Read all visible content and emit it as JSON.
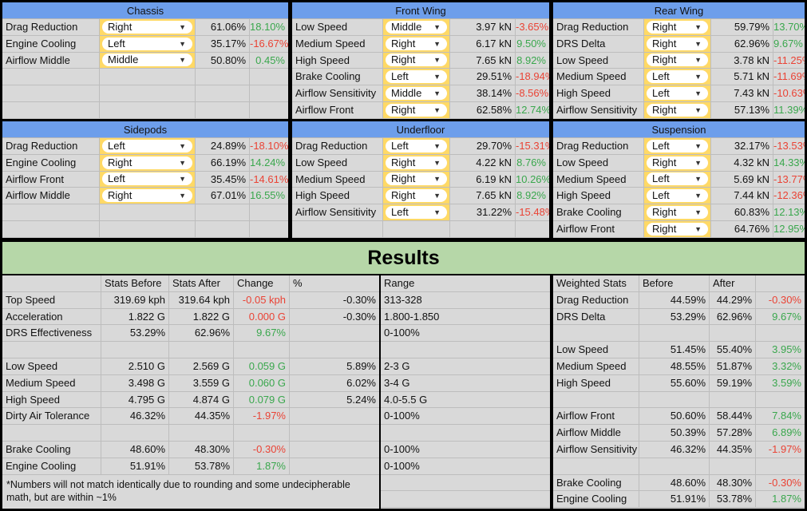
{
  "chassis": {
    "title": "Chassis",
    "rows": [
      {
        "name": "Drag Reduction",
        "dd": "Right",
        "val": "61.06%",
        "chg": "18.10%",
        "sign": "pos"
      },
      {
        "name": "Engine Cooling",
        "dd": "Left",
        "val": "35.17%",
        "chg": "-16.67%",
        "sign": "neg"
      },
      {
        "name": "Airflow Middle",
        "dd": "Middle",
        "val": "50.80%",
        "chg": "0.45%",
        "sign": "pos"
      },
      {
        "name": "",
        "dd": "",
        "val": "",
        "chg": "",
        "sign": ""
      },
      {
        "name": "",
        "dd": "",
        "val": "",
        "chg": "",
        "sign": ""
      },
      {
        "name": "",
        "dd": "",
        "val": "",
        "chg": "",
        "sign": ""
      }
    ]
  },
  "front_wing": {
    "title": "Front Wing",
    "rows": [
      {
        "name": "Low Speed",
        "dd": "Middle",
        "val": "3.97 kN",
        "chg": "-3.65%",
        "sign": "neg"
      },
      {
        "name": "Medium Speed",
        "dd": "Right",
        "val": "6.17 kN",
        "chg": "9.50%",
        "sign": "pos"
      },
      {
        "name": "High Speed",
        "dd": "Right",
        "val": "7.65 kN",
        "chg": "8.92%",
        "sign": "pos"
      },
      {
        "name": "Brake Cooling",
        "dd": "Left",
        "val": "29.51%",
        "chg": "-18.94%",
        "sign": "neg"
      },
      {
        "name": "Airflow Sensitivity",
        "dd": "Middle",
        "val": "38.14%",
        "chg": "-8.56%",
        "sign": "neg"
      },
      {
        "name": "Airflow Front",
        "dd": "Right",
        "val": "62.58%",
        "chg": "12.74%",
        "sign": "pos"
      }
    ]
  },
  "rear_wing": {
    "title": "Rear Wing",
    "rows": [
      {
        "name": "Drag Reduction",
        "dd": "Right",
        "val": "59.79%",
        "chg": "13.70%",
        "sign": "pos"
      },
      {
        "name": "DRS Delta",
        "dd": "Right",
        "val": "62.96%",
        "chg": "9.67%",
        "sign": "pos"
      },
      {
        "name": "Low Speed",
        "dd": "Right",
        "val": "3.78 kN",
        "chg": "-11.25%",
        "sign": "neg"
      },
      {
        "name": "Medium Speed",
        "dd": "Left",
        "val": "5.71 kN",
        "chg": "-11.69%",
        "sign": "neg"
      },
      {
        "name": "High Speed",
        "dd": "Left",
        "val": "7.43 kN",
        "chg": "-10.63%",
        "sign": "neg"
      },
      {
        "name": "Airflow Sensitivity",
        "dd": "Right",
        "val": "57.13%",
        "chg": "11.39%",
        "sign": "pos"
      }
    ]
  },
  "sidepods": {
    "title": "Sidepods",
    "rows": [
      {
        "name": "Drag Reduction",
        "dd": "Left",
        "val": "24.89%",
        "chg": "-18.10%",
        "sign": "neg"
      },
      {
        "name": "Engine Cooling",
        "dd": "Right",
        "val": "66.19%",
        "chg": "14.24%",
        "sign": "pos"
      },
      {
        "name": "Airflow Front",
        "dd": "Left",
        "val": "35.45%",
        "chg": "-14.61%",
        "sign": "neg"
      },
      {
        "name": "Airflow Middle",
        "dd": "Right",
        "val": "67.01%",
        "chg": "16.55%",
        "sign": "pos"
      },
      {
        "name": "",
        "dd": "",
        "val": "",
        "chg": "",
        "sign": ""
      },
      {
        "name": "",
        "dd": "",
        "val": "",
        "chg": "",
        "sign": ""
      }
    ]
  },
  "underfloor": {
    "title": "Underfloor",
    "rows": [
      {
        "name": "Drag Reduction",
        "dd": "Left",
        "val": "29.70%",
        "chg": "-15.31%",
        "sign": "neg"
      },
      {
        "name": "Low Speed",
        "dd": "Right",
        "val": "4.22 kN",
        "chg": "8.76%",
        "sign": "pos"
      },
      {
        "name": "Medium Speed",
        "dd": "Right",
        "val": "6.19 kN",
        "chg": "10.26%",
        "sign": "pos"
      },
      {
        "name": "High Speed",
        "dd": "Right",
        "val": "7.65 kN",
        "chg": "8.92%",
        "sign": "pos"
      },
      {
        "name": "Airflow Sensitivity",
        "dd": "Left",
        "val": "31.22%",
        "chg": "-15.48%",
        "sign": "neg"
      },
      {
        "name": "",
        "dd": "",
        "val": "",
        "chg": "",
        "sign": ""
      }
    ]
  },
  "suspension": {
    "title": "Suspension",
    "rows": [
      {
        "name": "Drag Reduction",
        "dd": "Left",
        "val": "32.17%",
        "chg": "-13.53%",
        "sign": "neg"
      },
      {
        "name": "Low Speed",
        "dd": "Right",
        "val": "4.32 kN",
        "chg": "14.33%",
        "sign": "pos"
      },
      {
        "name": "Medium Speed",
        "dd": "Left",
        "val": "5.69 kN",
        "chg": "-13.77%",
        "sign": "neg"
      },
      {
        "name": "High Speed",
        "dd": "Left",
        "val": "7.44 kN",
        "chg": "-12.36%",
        "sign": "neg"
      },
      {
        "name": "Brake Cooling",
        "dd": "Right",
        "val": "60.83%",
        "chg": "12.13%",
        "sign": "pos"
      },
      {
        "name": "Airflow Front",
        "dd": "Right",
        "val": "64.76%",
        "chg": "12.95%",
        "sign": "pos"
      }
    ]
  },
  "results_title": "Results",
  "stats": {
    "headers": [
      "",
      "Stats Before",
      "Stats After",
      "Change",
      "%"
    ],
    "rows": [
      {
        "name": "Top Speed",
        "before": "319.69 kph",
        "after": "319.64 kph",
        "chg": "-0.05 kph",
        "sign": "neg",
        "pct": "-0.30%"
      },
      {
        "name": "Acceleration",
        "before": "1.822 G",
        "after": "1.822 G",
        "chg": "0.000 G",
        "sign": "neg",
        "pct": "-0.30%"
      },
      {
        "name": "DRS Effectiveness",
        "before": "53.29%",
        "after": "62.96%",
        "chg": "9.67%",
        "sign": "pos",
        "pct": ""
      },
      {
        "name": "",
        "before": "",
        "after": "",
        "chg": "",
        "sign": "",
        "pct": ""
      },
      {
        "name": "Low Speed",
        "before": "2.510 G",
        "after": "2.569 G",
        "chg": "0.059 G",
        "sign": "pos",
        "pct": "5.89%"
      },
      {
        "name": "Medium Speed",
        "before": "3.498 G",
        "after": "3.559 G",
        "chg": "0.060 G",
        "sign": "pos",
        "pct": "6.02%"
      },
      {
        "name": "High Speed",
        "before": "4.795 G",
        "after": "4.874 G",
        "chg": "0.079 G",
        "sign": "pos",
        "pct": "5.24%"
      },
      {
        "name": "Dirty Air Tolerance",
        "before": "46.32%",
        "after": "44.35%",
        "chg": "-1.97%",
        "sign": "neg",
        "pct": ""
      },
      {
        "name": "",
        "before": "",
        "after": "",
        "chg": "",
        "sign": "",
        "pct": ""
      },
      {
        "name": "Brake Cooling",
        "before": "48.60%",
        "after": "48.30%",
        "chg": "-0.30%",
        "sign": "neg",
        "pct": ""
      },
      {
        "name": "Engine Cooling",
        "before": "51.91%",
        "after": "53.78%",
        "chg": "1.87%",
        "sign": "pos",
        "pct": ""
      }
    ],
    "note": "*Numbers will not match identically due to rounding and some undecipherable math, but are within ~1%"
  },
  "range": {
    "header": "Range",
    "rows": [
      "313-328",
      "1.800-1.850",
      "0-100%",
      "",
      "2-3 G",
      "3-4 G",
      "4.0-5.5 G",
      "0-100%",
      "",
      "0-100%",
      "0-100%",
      "",
      ""
    ]
  },
  "weighted": {
    "headers": [
      "Weighted Stats",
      "Before",
      "After",
      ""
    ],
    "rows": [
      {
        "name": "Drag Reduction",
        "before": "44.59%",
        "after": "44.29%",
        "chg": "-0.30%",
        "sign": "neg"
      },
      {
        "name": "DRS Delta",
        "before": "53.29%",
        "after": "62.96%",
        "chg": "9.67%",
        "sign": "pos"
      },
      {
        "name": "",
        "before": "",
        "after": "",
        "chg": "",
        "sign": ""
      },
      {
        "name": "Low Speed",
        "before": "51.45%",
        "after": "55.40%",
        "chg": "3.95%",
        "sign": "pos"
      },
      {
        "name": "Medium Speed",
        "before": "48.55%",
        "after": "51.87%",
        "chg": "3.32%",
        "sign": "pos"
      },
      {
        "name": "High Speed",
        "before": "55.60%",
        "after": "59.19%",
        "chg": "3.59%",
        "sign": "pos"
      },
      {
        "name": "",
        "before": "",
        "after": "",
        "chg": "",
        "sign": ""
      },
      {
        "name": "Airflow Front",
        "before": "50.60%",
        "after": "58.44%",
        "chg": "7.84%",
        "sign": "pos"
      },
      {
        "name": "Airflow Middle",
        "before": "50.39%",
        "after": "57.28%",
        "chg": "6.89%",
        "sign": "pos"
      },
      {
        "name": "Airflow Sensitivity",
        "before": "46.32%",
        "after": "44.35%",
        "chg": "-1.97%",
        "sign": "neg"
      },
      {
        "name": "",
        "before": "",
        "after": "",
        "chg": "",
        "sign": ""
      },
      {
        "name": "Brake Cooling",
        "before": "48.60%",
        "after": "48.30%",
        "chg": "-0.30%",
        "sign": "neg"
      },
      {
        "name": "Engine Cooling",
        "before": "51.91%",
        "after": "53.78%",
        "chg": "1.87%",
        "sign": "pos"
      }
    ]
  },
  "colors": {
    "panel_header": "#6d9eeb",
    "results_banner": "#b6d7a8",
    "dropdown_cell": "#ffd966",
    "positive": "#3aa74d",
    "negative": "#ea4335"
  }
}
